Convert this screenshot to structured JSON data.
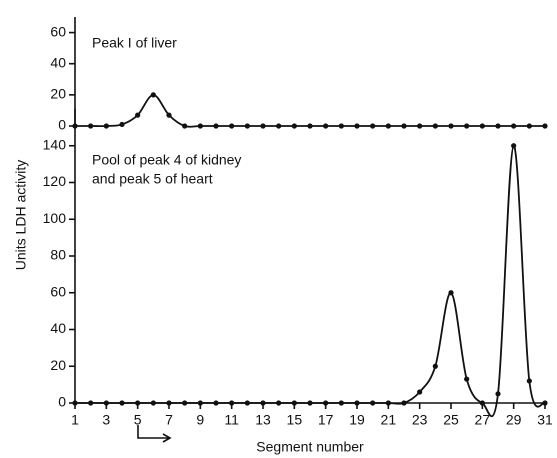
{
  "chart_data": [
    {
      "type": "line",
      "annotation": [
        "Peak I of liver"
      ],
      "x": [
        1,
        2,
        3,
        4,
        5,
        6,
        7,
        8,
        9,
        10,
        11,
        12,
        13,
        14,
        15,
        16,
        17,
        18,
        19,
        20,
        21,
        22,
        23,
        24,
        25,
        26,
        27,
        28,
        29,
        30,
        31
      ],
      "series": [
        {
          "color": "#111111",
          "values": [
            0,
            0,
            0,
            1,
            7,
            20,
            7,
            0,
            0,
            0,
            0,
            0,
            0,
            0,
            0,
            0,
            0,
            0,
            0,
            0,
            0,
            0,
            0,
            0,
            0,
            0,
            0,
            0,
            0,
            0,
            0
          ]
        }
      ],
      "xlim": [
        1,
        31
      ],
      "ylim": [
        0,
        70
      ],
      "yticks": [
        0,
        20,
        40,
        60
      ]
    },
    {
      "type": "line",
      "annotation": [
        "Pool of peak 4 of kidney",
        "and peak 5 of heart"
      ],
      "x_label": "Segment number",
      "y_label": "Units LDH activity",
      "x": [
        1,
        2,
        3,
        4,
        5,
        6,
        7,
        8,
        9,
        10,
        11,
        12,
        13,
        14,
        15,
        16,
        17,
        18,
        19,
        20,
        21,
        22,
        23,
        24,
        25,
        26,
        27,
        28,
        29,
        30,
        31
      ],
      "series": [
        {
          "color": "#111111",
          "values": [
            0,
            0,
            0,
            0,
            0,
            0,
            0,
            0,
            0,
            0,
            0,
            0,
            0,
            0,
            0,
            0,
            0,
            0,
            0,
            0,
            0,
            0,
            6,
            20,
            60,
            13,
            0,
            5,
            140,
            12,
            0
          ]
        }
      ],
      "xlim": [
        1,
        31
      ],
      "ylim": [
        0,
        160
      ],
      "xticks": [
        1,
        3,
        5,
        7,
        9,
        11,
        13,
        15,
        17,
        19,
        21,
        23,
        25,
        27,
        29,
        31
      ],
      "yticks": [
        0,
        20,
        40,
        60,
        80,
        100,
        120,
        140
      ]
    }
  ]
}
